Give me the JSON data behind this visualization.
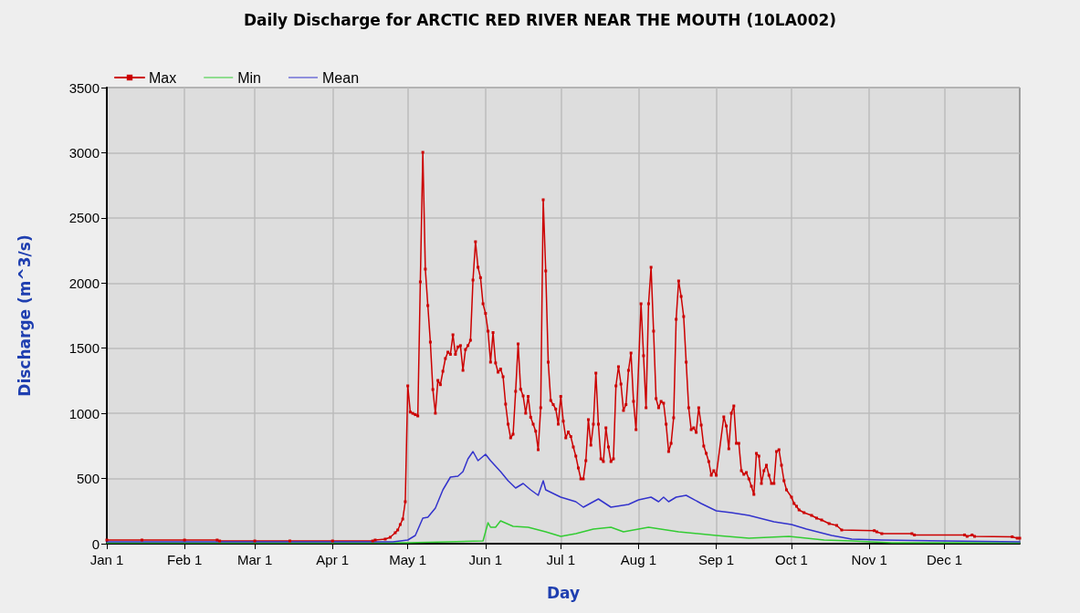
{
  "chart_data": {
    "type": "line",
    "title": "Daily Discharge for ARCTIC RED RIVER NEAR THE MOUTH (10LA002)",
    "xlabel": "Day",
    "ylabel": "Discharge (m^3/s)",
    "xlim": [
      "--01-01",
      "--12-31"
    ],
    "xticks": [
      {
        "value": "--01-01",
        "label": "Jan 1"
      },
      {
        "value": "--02-01",
        "label": "Feb 1"
      },
      {
        "value": "--03-01",
        "label": "Mar 1"
      },
      {
        "value": "--04-01",
        "label": "Apr 1"
      },
      {
        "value": "--05-01",
        "label": "May 1"
      },
      {
        "value": "--06-01",
        "label": "Jun 1"
      },
      {
        "value": "--07-01",
        "label": "Jul 1"
      },
      {
        "value": "--08-01",
        "label": "Aug 1"
      },
      {
        "value": "--09-01",
        "label": "Sep 1"
      },
      {
        "value": "--10-01",
        "label": "Oct 1"
      },
      {
        "value": "--11-01",
        "label": "Nov 1"
      },
      {
        "value": "--12-01",
        "label": "Dec 1"
      }
    ],
    "ylim": [
      0,
      3500
    ],
    "yticks": [
      0,
      500,
      1000,
      1500,
      2000,
      2500,
      3000,
      3500
    ],
    "grid": true,
    "legend": "top left",
    "marker": "square",
    "line_style": "solid",
    "series": [
      {
        "name": "Max",
        "color": "#cc0000",
        "x": [
          "--01-01",
          "--01-15",
          "--02-01",
          "--02-14",
          "--02-15",
          "--03-01",
          "--03-15",
          "--04-01",
          "--04-17",
          "--04-18",
          "--04-22",
          "--04-24",
          "--04-26",
          "--04-27",
          "--04-28",
          "--04-29",
          "--04-30",
          "--05-01",
          "--05-02",
          "--05-03",
          "--05-04",
          "--05-05",
          "--05-06",
          "--05-07",
          "--05-08",
          "--05-09",
          "--05-10",
          "--05-11",
          "--05-12",
          "--05-13",
          "--05-14",
          "--05-15",
          "--05-16",
          "--05-17",
          "--05-18",
          "--05-19",
          "--05-20",
          "--05-21",
          "--05-22",
          "--05-23",
          "--05-24",
          "--05-25",
          "--05-26",
          "--05-27",
          "--05-28",
          "--05-29",
          "--05-30",
          "--05-31",
          "--06-01",
          "--06-02",
          "--06-03",
          "--06-04",
          "--06-05",
          "--06-06",
          "--06-07",
          "--06-08",
          "--06-09",
          "--06-10",
          "--06-11",
          "--06-12",
          "--06-13",
          "--06-14",
          "--06-15",
          "--06-16",
          "--06-17",
          "--06-18",
          "--06-19",
          "--06-20",
          "--06-21",
          "--06-22",
          "--06-23",
          "--06-24",
          "--06-25",
          "--06-26",
          "--06-27",
          "--06-28",
          "--06-29",
          "--06-30",
          "--07-01",
          "--07-02",
          "--07-03",
          "--07-04",
          "--07-05",
          "--07-06",
          "--07-07",
          "--07-08",
          "--07-09",
          "--07-10",
          "--07-11",
          "--07-12",
          "--07-13",
          "--07-14",
          "--07-15",
          "--07-16",
          "--07-17",
          "--07-18",
          "--07-19",
          "--07-20",
          "--07-21",
          "--07-22",
          "--07-23",
          "--07-24",
          "--07-25",
          "--07-26",
          "--07-27",
          "--07-28",
          "--07-29",
          "--07-30",
          "--07-31",
          "--08-02",
          "--08-03",
          "--08-04",
          "--08-05",
          "--08-06",
          "--08-07",
          "--08-08",
          "--08-09",
          "--08-10",
          "--08-11",
          "--08-12",
          "--08-13",
          "--08-14",
          "--08-15",
          "--08-16",
          "--08-17",
          "--08-18",
          "--08-19",
          "--08-20",
          "--08-21",
          "--08-22",
          "--08-23",
          "--08-24",
          "--08-25",
          "--08-26",
          "--08-27",
          "--08-28",
          "--08-29",
          "--08-30",
          "--08-31",
          "--09-01",
          "--09-04",
          "--09-05",
          "--09-06",
          "--09-07",
          "--09-08",
          "--09-09",
          "--09-10",
          "--09-11",
          "--09-12",
          "--09-13",
          "--09-14",
          "--09-15",
          "--09-16",
          "--09-17",
          "--09-18",
          "--09-19",
          "--09-20",
          "--09-21",
          "--09-22",
          "--09-23",
          "--09-24",
          "--09-25",
          "--09-26",
          "--09-27",
          "--09-28",
          "--09-29",
          "--10-01",
          "--10-02",
          "--10-03",
          "--10-04",
          "--10-06",
          "--10-09",
          "--10-11",
          "--10-13",
          "--10-16",
          "--10-19",
          "--10-21",
          "--11-03",
          "--11-04",
          "--11-06",
          "--11-18",
          "--11-19",
          "--12-09",
          "--12-10",
          "--12-12",
          "--12-13",
          "--12-28",
          "--12-30",
          "--12-31"
        ],
        "values": [
          28,
          28,
          28,
          28,
          21,
          21,
          21,
          21,
          21,
          28,
          35,
          49,
          84,
          105,
          147,
          189,
          322,
          1211,
          1010,
          1000,
          990,
          980,
          2009,
          3003,
          2107,
          1827,
          1547,
          1183,
          1001,
          1253,
          1220,
          1323,
          1421,
          1470,
          1453,
          1603,
          1453,
          1510,
          1520,
          1330,
          1490,
          1520,
          1561,
          2023,
          2317,
          2121,
          2041,
          1841,
          1767,
          1631,
          1393,
          1620,
          1387,
          1316,
          1340,
          1281,
          1071,
          917,
          812,
          840,
          1169,
          1533,
          1185,
          1134,
          1001,
          1130,
          970,
          917,
          863,
          721,
          1043,
          2639,
          2093,
          1393,
          1099,
          1067,
          1033,
          917,
          1130,
          940,
          812,
          857,
          822,
          742,
          672,
          581,
          497,
          497,
          637,
          952,
          756,
          917,
          1309,
          917,
          651,
          630,
          889,
          742,
          630,
          651,
          1211,
          1358,
          1225,
          1022,
          1067,
          1330,
          1463,
          1092,
          875,
          1841,
          1442,
          1043,
          1841,
          2121,
          1631,
          1113,
          1043,
          1092,
          1078,
          917,
          707,
          770,
          966,
          1722,
          2016,
          1897,
          1743,
          1393,
          1043,
          875,
          889,
          854,
          1043,
          910,
          749,
          693,
          630,
          525,
          560,
          525,
          973,
          903,
          728,
          1001,
          1057,
          770,
          770,
          560,
          532,
          546,
          497,
          441,
          378,
          693,
          672,
          462,
          560,
          602,
          525,
          462,
          462,
          707,
          721,
          602,
          483,
          413,
          357,
          308,
          287,
          259,
          238,
          217,
          196,
          182,
          154,
          140,
          105,
          100,
          91,
          77,
          77,
          67,
          67,
          56,
          67,
          56,
          53,
          42,
          42
        ]
      },
      {
        "name": "Min",
        "color": "#33cc33",
        "marker": "none",
        "x": [
          "--01-01",
          "--05-01",
          "--05-31",
          "--06-02",
          "--06-03",
          "--06-05",
          "--06-07",
          "--06-12",
          "--06-18",
          "--06-25",
          "--07-01",
          "--07-07",
          "--07-14",
          "--07-21",
          "--07-26",
          "--08-05",
          "--08-17",
          "--09-01",
          "--09-14",
          "--09-30",
          "--10-14",
          "--10-25",
          "--11-10",
          "--12-31"
        ],
        "values": [
          7,
          7,
          21,
          161,
          126,
          126,
          175,
          133,
          126,
          91,
          56,
          77,
          112,
          126,
          91,
          126,
          91,
          63,
          42,
          56,
          28,
          21,
          7,
          7
        ]
      },
      {
        "name": "Mean",
        "color": "#3333cc",
        "marker": "none",
        "x": [
          "--01-01",
          "--04-25",
          "--05-01",
          "--05-04",
          "--05-07",
          "--05-09",
          "--05-12",
          "--05-15",
          "--05-18",
          "--05-21",
          "--05-23",
          "--05-25",
          "--05-27",
          "--05-29",
          "--06-01",
          "--06-03",
          "--06-07",
          "--06-10",
          "--06-13",
          "--06-16",
          "--06-19",
          "--06-22",
          "--06-24",
          "--06-25",
          "--07-01",
          "--07-07",
          "--07-10",
          "--07-16",
          "--07-21",
          "--07-28",
          "--08-01",
          "--08-06",
          "--08-09",
          "--08-11",
          "--08-13",
          "--08-16",
          "--08-20",
          "--08-26",
          "--09-01",
          "--09-07",
          "--09-14",
          "--09-24",
          "--10-01",
          "--10-07",
          "--10-17",
          "--10-25",
          "--11-06",
          "--12-01",
          "--12-31"
        ],
        "values": [
          14,
          14,
          28,
          63,
          196,
          203,
          273,
          413,
          511,
          518,
          553,
          651,
          707,
          637,
          686,
          637,
          553,
          483,
          427,
          462,
          413,
          371,
          483,
          413,
          357,
          322,
          280,
          343,
          280,
          301,
          336,
          357,
          322,
          357,
          322,
          357,
          371,
          308,
          252,
          238,
          217,
          168,
          147,
          112,
          63,
          35,
          28,
          21,
          14
        ]
      }
    ]
  }
}
